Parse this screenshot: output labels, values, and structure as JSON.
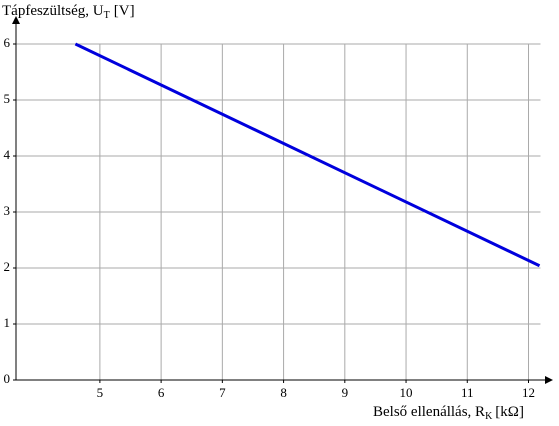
{
  "chart_data": {
    "type": "line",
    "y_label": {
      "text": "Tápfeszültség, U",
      "sub": "T",
      "unit": "[V]"
    },
    "x_label": {
      "text": "Belső ellenállás, R",
      "sub": "K",
      "unit": "[kΩ]"
    },
    "x": [
      4.6,
      12.18
    ],
    "series": [
      {
        "color": "#0000dd",
        "values": [
          6,
          2.04
        ]
      }
    ],
    "xlim": [
      3.63,
      12.4
    ],
    "ylim": [
      0,
      6.5
    ],
    "xticks": [
      5,
      6,
      7,
      8,
      9,
      10,
      11,
      12
    ],
    "yticks": [
      0,
      1,
      2,
      3,
      4,
      5,
      6
    ],
    "grid": true
  }
}
